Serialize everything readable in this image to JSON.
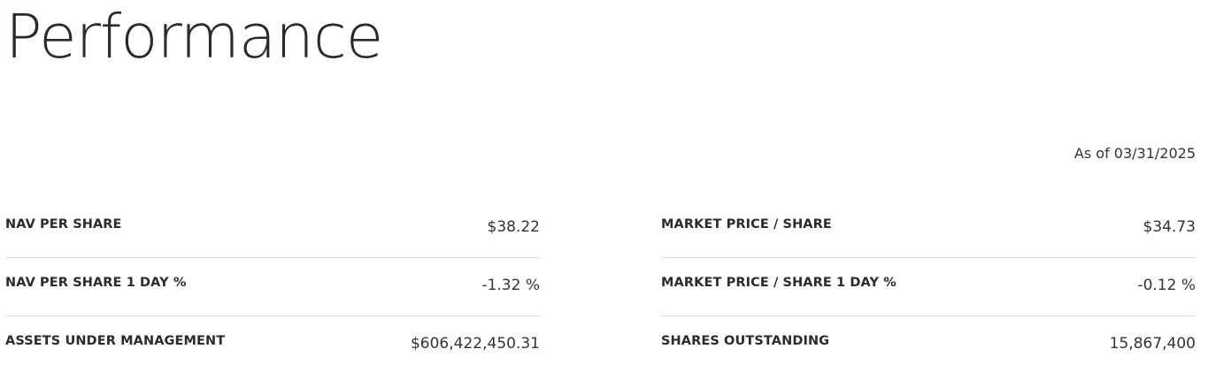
{
  "title": "Performance",
  "as_of": "As of 03/31/2025",
  "left_stats": [
    {
      "label": "NAV PER SHARE",
      "value": "$38.22"
    },
    {
      "label": "NAV PER SHARE 1 DAY %",
      "value": "-1.32 %"
    },
    {
      "label": "ASSETS UNDER MANAGEMENT",
      "value": "$606,422,450.31"
    }
  ],
  "right_stats": [
    {
      "label": "MARKET PRICE / SHARE",
      "value": "$34.73"
    },
    {
      "label": "MARKET PRICE / SHARE 1 DAY %",
      "value": "-0.12 %"
    },
    {
      "label": "SHARES OUTSTANDING",
      "value": "15,867,400"
    }
  ]
}
